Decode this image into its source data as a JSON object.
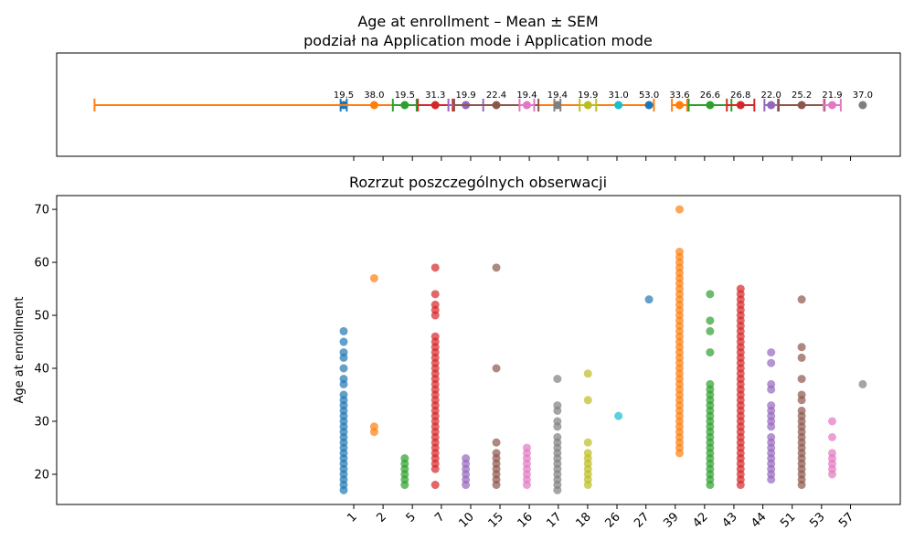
{
  "chart_data": [
    {
      "type": "errorbar",
      "title": "Age at enrollment – Mean ± SEM",
      "subtitle": "podział na Application mode i Application mode",
      "xlim": [
        -9.4,
        18.23
      ],
      "means": [
        19.5,
        38.0,
        19.5,
        31.3,
        19.9,
        22.4,
        19.4,
        19.4,
        19.9,
        31.0,
        53.0,
        33.6,
        26.6,
        26.8,
        22.0,
        25.2,
        21.9,
        37.0
      ],
      "value_labels": [
        "19.5",
        "38.0",
        "19.5",
        "31.3",
        "19.9",
        "22.4",
        "19.4",
        "19.4",
        "19.9",
        "31.0",
        "53.0",
        "33.6",
        "26.6",
        "26.8",
        "22.0",
        "25.2",
        "21.9",
        "37.0"
      ],
      "sem": [
        0.1,
        9.16,
        0.39,
        0.57,
        0.57,
        1.38,
        0.24,
        0.1,
        0.27,
        0,
        0,
        0.25,
        0.7,
        0.45,
        0.22,
        0.75,
        0.28,
        0
      ],
      "colors": [
        "#1f77b4",
        "#ff7f0e",
        "#2ca02c",
        "#d62728",
        "#9467bd",
        "#8c564b",
        "#e377c2",
        "#7f7f7f",
        "#bcbd22",
        "#17becf",
        "#1f77b4",
        "#ff7f0e",
        "#2ca02c",
        "#d62728",
        "#9467bd",
        "#8c564b",
        "#e377c2",
        "#7f7f7f"
      ]
    },
    {
      "type": "strip",
      "title": "Rozrzut poszczególnych obserwacji",
      "y_label": "Age at enrollment",
      "categories": [
        "1",
        "2",
        "5",
        "7",
        "10",
        "15",
        "16",
        "17",
        "18",
        "26",
        "27",
        "39",
        "42",
        "43",
        "44",
        "51",
        "53",
        "57"
      ],
      "xlim": [
        -9.4,
        18.23
      ],
      "xticks": [
        {
          "value": 0.33,
          "label": "1"
        },
        {
          "value": 1.29,
          "label": "2"
        },
        {
          "value": 2.25,
          "label": "5"
        },
        {
          "value": 3.2,
          "label": "7"
        },
        {
          "value": 4.16,
          "label": "10"
        },
        {
          "value": 5.12,
          "label": "15"
        },
        {
          "value": 6.08,
          "label": "16"
        },
        {
          "value": 7.03,
          "label": "17"
        },
        {
          "value": 7.99,
          "label": "18"
        },
        {
          "value": 8.95,
          "label": "26"
        },
        {
          "value": 9.9,
          "label": "27"
        },
        {
          "value": 10.86,
          "label": "39"
        },
        {
          "value": 11.82,
          "label": "42"
        },
        {
          "value": 12.78,
          "label": "43"
        },
        {
          "value": 13.73,
          "label": "44"
        },
        {
          "value": 14.69,
          "label": "51"
        },
        {
          "value": 15.65,
          "label": "53"
        },
        {
          "value": 16.6,
          "label": "57"
        }
      ],
      "ylim": [
        14.3,
        72.6
      ],
      "yticks": [
        20,
        30,
        40,
        50,
        60,
        70
      ],
      "points": [
        [
          17,
          18,
          19,
          20,
          21,
          22,
          23,
          24,
          25,
          26,
          27,
          28,
          29,
          30,
          31,
          32,
          33,
          34,
          35,
          37,
          38,
          40,
          42,
          43,
          45,
          47
        ],
        [
          57,
          29,
          28
        ],
        [
          18,
          19,
          20,
          21,
          22,
          23
        ],
        [
          18,
          21,
          22,
          23,
          24,
          25,
          26,
          27,
          28,
          29,
          30,
          31,
          32,
          33,
          34,
          35,
          36,
          37,
          38,
          39,
          40,
          41,
          42,
          43,
          44,
          45,
          46,
          50,
          51,
          52,
          54,
          59
        ],
        [
          18,
          19,
          20,
          21,
          22,
          23
        ],
        [
          18,
          19,
          20,
          21,
          22,
          23,
          24,
          26,
          40,
          59
        ],
        [
          18,
          19,
          20,
          21,
          22,
          23,
          24,
          25
        ],
        [
          17,
          18,
          19,
          20,
          21,
          22,
          23,
          24,
          25,
          26,
          27,
          29,
          30,
          32,
          33,
          38
        ],
        [
          18,
          19,
          20,
          21,
          22,
          23,
          24,
          26,
          34,
          39
        ],
        [
          31
        ],
        [
          53
        ],
        [
          24,
          25,
          26,
          27,
          28,
          29,
          30,
          31,
          32,
          33,
          34,
          35,
          36,
          37,
          38,
          39,
          40,
          41,
          42,
          43,
          44,
          45,
          46,
          47,
          48,
          49,
          50,
          51,
          52,
          53,
          54,
          55,
          56,
          57,
          58,
          59,
          60,
          61,
          62,
          70
        ],
        [
          18,
          19,
          20,
          21,
          22,
          23,
          24,
          25,
          26,
          27,
          28,
          29,
          30,
          31,
          32,
          33,
          34,
          35,
          36,
          37,
          43,
          47,
          49,
          54
        ],
        [
          18,
          19,
          20,
          21,
          22,
          23,
          24,
          25,
          26,
          27,
          28,
          29,
          30,
          31,
          32,
          33,
          34,
          35,
          36,
          37,
          38,
          39,
          40,
          41,
          42,
          43,
          44,
          45,
          46,
          47,
          48,
          49,
          50,
          51,
          52,
          53,
          54,
          55
        ],
        [
          19,
          20,
          21,
          22,
          23,
          24,
          25,
          26,
          27,
          29,
          30,
          31,
          32,
          33,
          36,
          37,
          41,
          43
        ],
        [
          18,
          19,
          20,
          21,
          22,
          23,
          24,
          25,
          26,
          27,
          28,
          29,
          30,
          31,
          32,
          34,
          35,
          38,
          42,
          44,
          53
        ],
        [
          20,
          21,
          22,
          23,
          24,
          27,
          30
        ],
        [
          37
        ]
      ]
    }
  ]
}
